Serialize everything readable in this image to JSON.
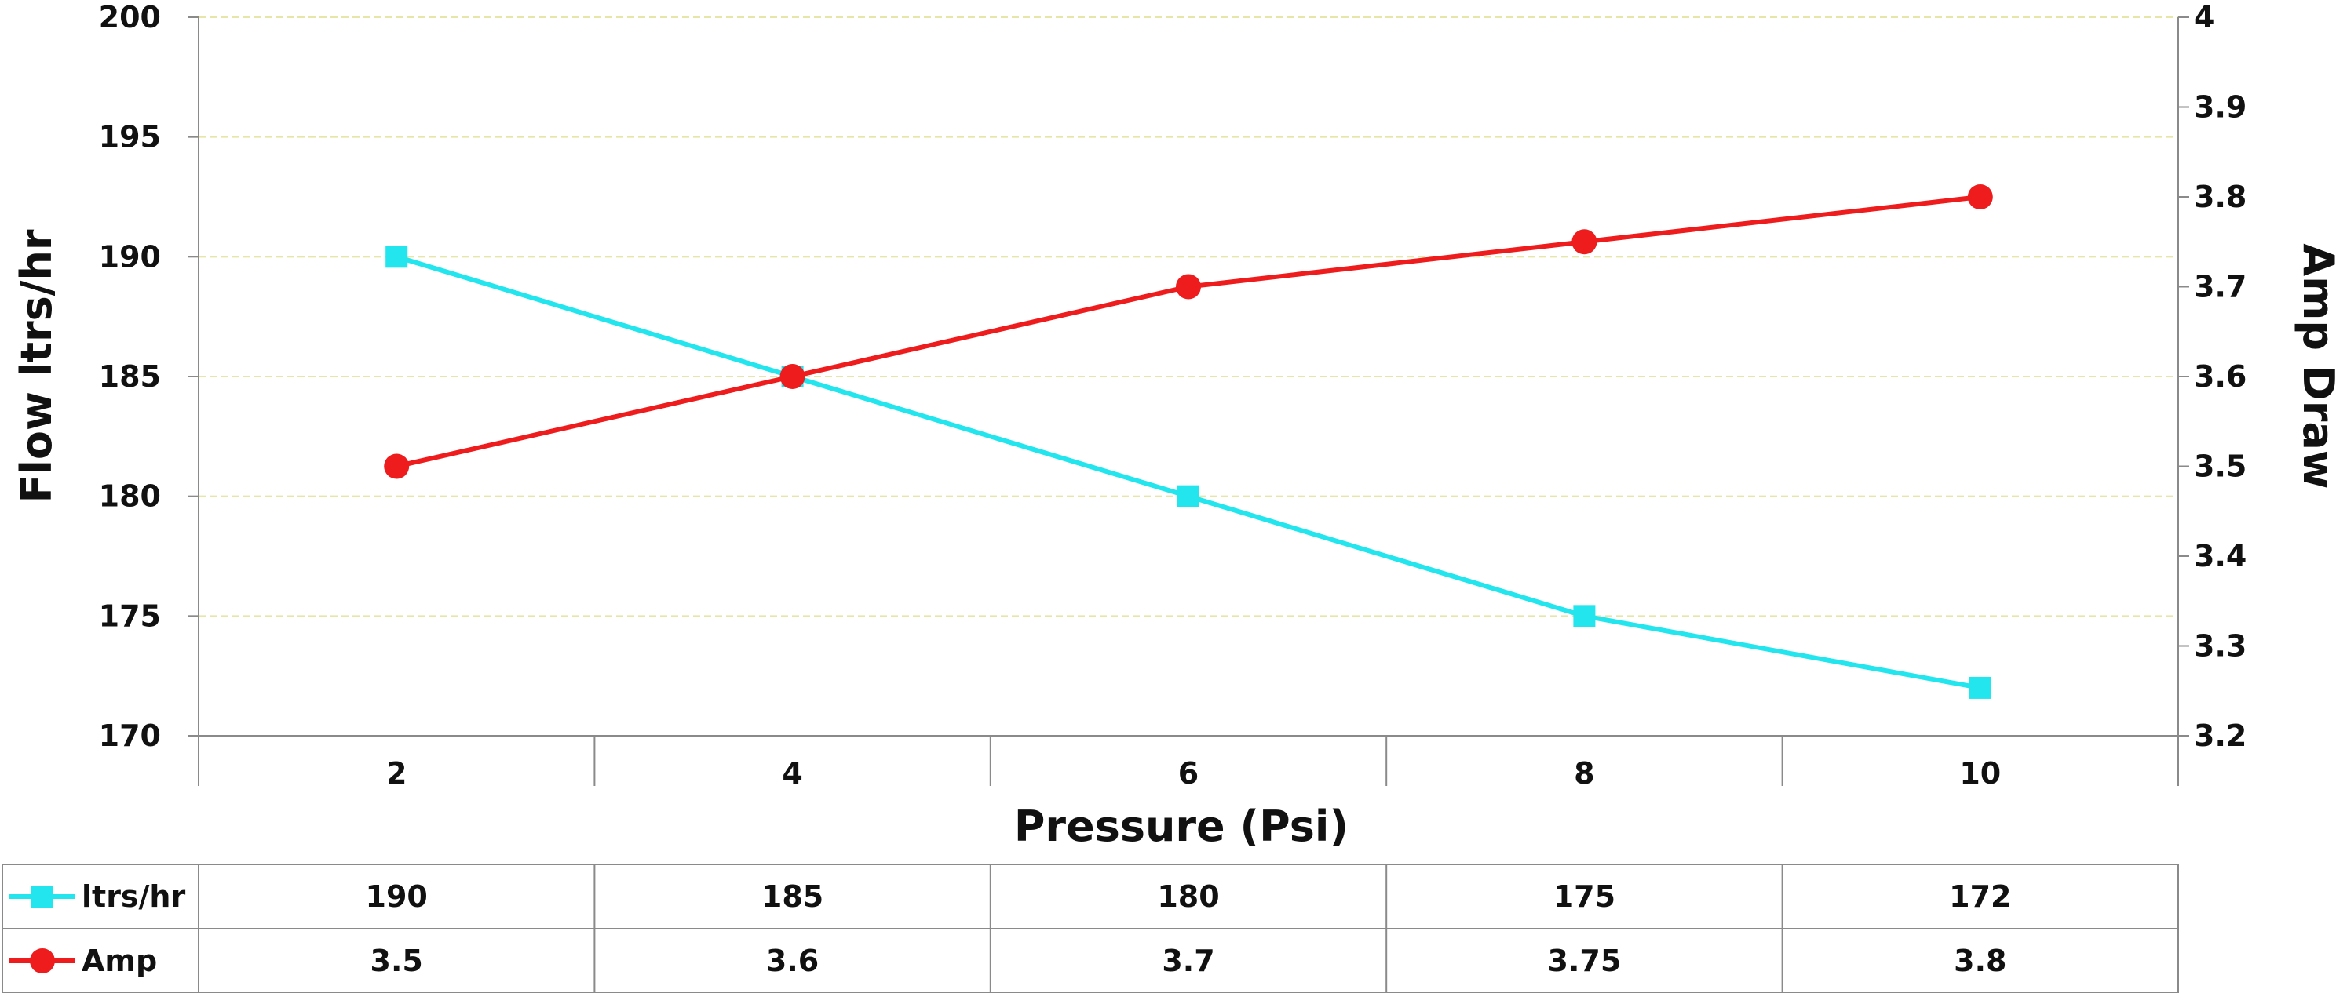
{
  "chart_data": {
    "type": "line",
    "xlabel": "Pressure (Psi)",
    "ylabel_left": "Flow ltrs/hr",
    "ylabel_right": "Amp Draw",
    "categories": [
      "2",
      "4",
      "6",
      "8",
      "10"
    ],
    "x": [
      2,
      4,
      6,
      8,
      10
    ],
    "ylim_left": [
      170,
      200
    ],
    "yticks_left": [
      170,
      175,
      180,
      185,
      190,
      195,
      200
    ],
    "ylim_right": [
      3.2,
      4.0
    ],
    "yticks_right": [
      "3.2",
      "3.3",
      "3.4",
      "3.5",
      "3.6",
      "3.7",
      "3.8",
      "3.9",
      "4"
    ],
    "grid": true,
    "legend": "data-table-below",
    "series": [
      {
        "name": "ltrs/hr",
        "axis": "left",
        "marker": "square",
        "color": "#22e5ee",
        "values": [
          190,
          185,
          180,
          175,
          172
        ],
        "labels": [
          "190",
          "185",
          "180",
          "175",
          "172"
        ]
      },
      {
        "name": "Amp",
        "axis": "right",
        "marker": "circle",
        "color": "#ee1c1c",
        "values": [
          3.5,
          3.6,
          3.7,
          3.75,
          3.8
        ],
        "labels": [
          "3.5",
          "3.6",
          "3.7",
          "3.75",
          "3.8"
        ]
      }
    ]
  }
}
